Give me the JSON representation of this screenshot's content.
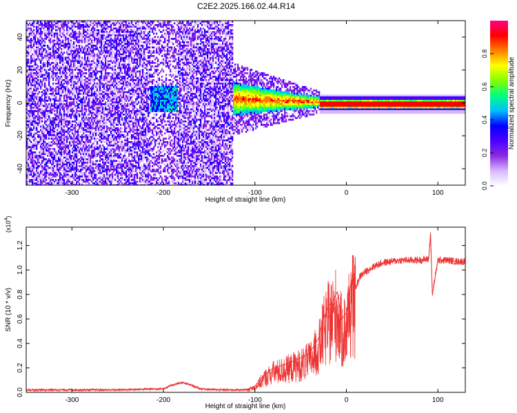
{
  "title": "C2E2.2025.166.02.44.R14",
  "chart_data": [
    {
      "type": "heatmap",
      "xlabel": "Height of straight line (km)",
      "ylabel": "Frequency (Hz)",
      "xlim": [
        -350,
        130
      ],
      "ylim": [
        -50,
        50
      ],
      "xticks": [
        -300,
        -200,
        -100,
        0,
        100
      ],
      "yticks": [
        -40,
        -20,
        0,
        20,
        40
      ],
      "colorbar": {
        "label": "Normalized spectral amplitude",
        "range": [
          0,
          1
        ],
        "ticks": [
          "0.0",
          "0.2",
          "0.4",
          "0.6",
          "0.8"
        ],
        "tick_values": [
          0,
          0.2,
          0.4,
          0.6,
          0.8
        ],
        "colormap": [
          "#ffffff",
          "#d6b8ff",
          "#8a2be2",
          "#4b00ff",
          "#0000ff",
          "#00bfff",
          "#00ff80",
          "#80ff00",
          "#ffff00",
          "#ff8000",
          "#ff0000",
          "#ff0080"
        ]
      },
      "regions": [
        {
          "x": [
            -350,
            -215
          ],
          "desc": "scattered noise",
          "level": 0.12
        },
        {
          "x": [
            -215,
            -185
          ],
          "desc": "low-amplitude cluster near 0 Hz",
          "level": 0.3
        },
        {
          "x": [
            -185,
            -125
          ],
          "desc": "scattered noise",
          "level": 0.12
        },
        {
          "x": [
            -125,
            -30
          ],
          "desc": "signal band with increasing strength",
          "level": 0.5
        },
        {
          "x": [
            -30,
            130
          ],
          "desc": "strong narrow carrier line at 0 Hz",
          "level": 0.95
        }
      ],
      "carrier_frequency_hz": 0
    },
    {
      "type": "line",
      "xlabel": "Height of straight line (km)",
      "ylabel": "SNR (10 * v/v)",
      "y_multiplier": "(x10",
      "y_multiplier_exp": "4",
      "y_multiplier_close": ")",
      "xlim": [
        -350,
        130
      ],
      "ylim": [
        0,
        1.35
      ],
      "xticks": [
        -300,
        -200,
        -100,
        0,
        100
      ],
      "yticks": [
        "0.0",
        "0.2",
        "0.4",
        "0.6",
        "0.8",
        "1.0",
        "1.2"
      ],
      "ytick_values": [
        0,
        0.2,
        0.4,
        0.6,
        0.8,
        1.0,
        1.2
      ],
      "color": "#ee3333",
      "series": [
        {
          "x": [
            -350,
            -250,
            -200,
            -190,
            -180,
            -170,
            -160,
            -140,
            -110,
            -100,
            -90,
            -80,
            -70,
            -60,
            -50,
            -40,
            -30,
            -25,
            -20,
            -15,
            -10,
            -5,
            0,
            5,
            10,
            15,
            20,
            30,
            40,
            50,
            60,
            70,
            80,
            90,
            92,
            94,
            100,
            110,
            120,
            130
          ],
          "values": [
            0.02,
            0.02,
            0.03,
            0.06,
            0.08,
            0.06,
            0.03,
            0.02,
            0.02,
            0.05,
            0.14,
            0.2,
            0.22,
            0.25,
            0.28,
            0.32,
            0.45,
            0.6,
            0.7,
            0.75,
            0.82,
            0.6,
            0.65,
            0.9,
            0.85,
            0.95,
            0.98,
            1.03,
            1.06,
            1.07,
            1.08,
            1.08,
            1.08,
            1.09,
            1.3,
            0.8,
            1.08,
            1.08,
            1.07,
            1.07
          ]
        }
      ]
    }
  ]
}
